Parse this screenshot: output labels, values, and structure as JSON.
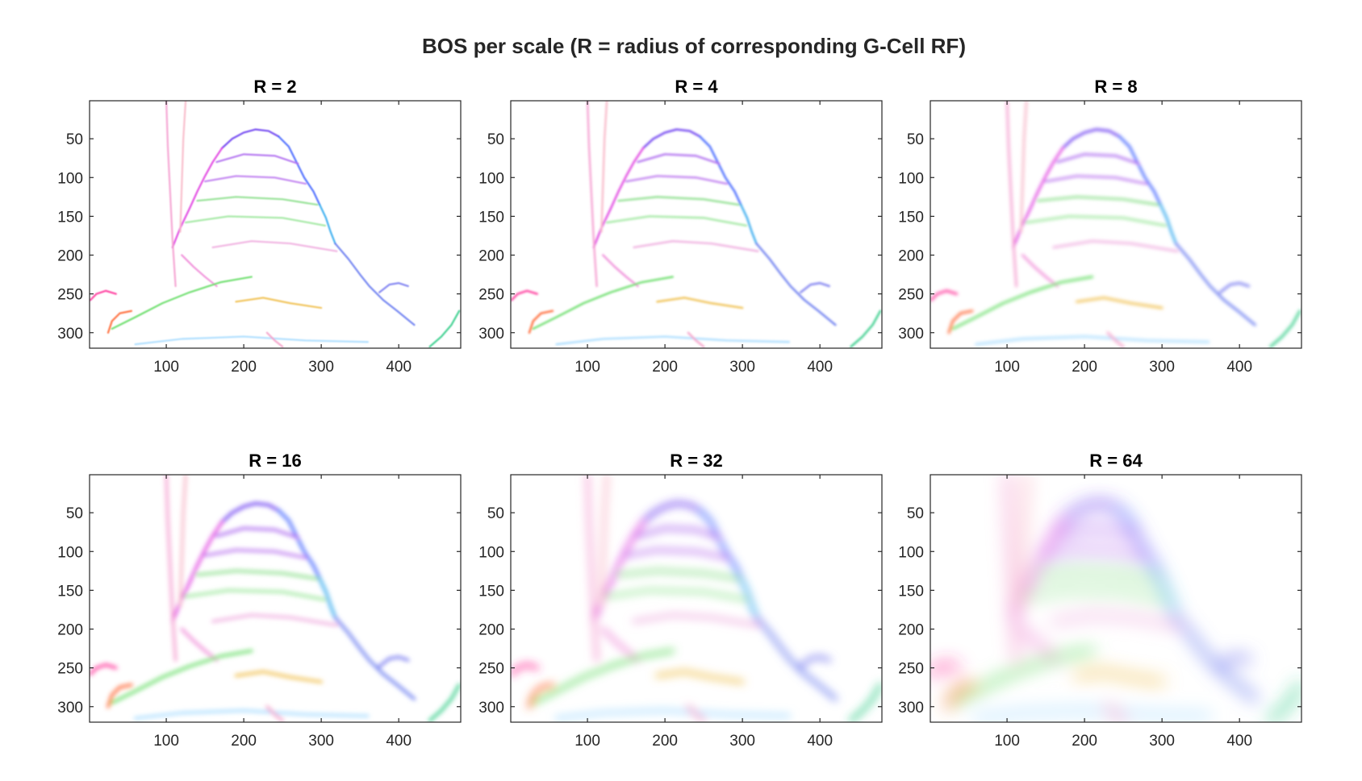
{
  "figure_title": "BOS per scale (R = radius of corresponding G-Cell RF)",
  "chart_data": [
    {
      "type": "heatmap",
      "title": "R = 2",
      "radius": 2,
      "xlim": [
        1,
        480
      ],
      "ylim": [
        1,
        320
      ],
      "y_direction": "reverse",
      "xticks": [
        100,
        200,
        300,
        400
      ],
      "yticks": [
        50,
        100,
        150,
        200,
        250,
        300
      ],
      "xtick_labels": [
        "100",
        "200",
        "300",
        "400"
      ],
      "ytick_labels": [
        "50",
        "100",
        "150",
        "200",
        "250",
        "300"
      ],
      "blur": 0.7,
      "peak_opacity": 0.85
    },
    {
      "type": "heatmap",
      "title": "R = 4",
      "radius": 4,
      "xlim": [
        1,
        480
      ],
      "ylim": [
        1,
        320
      ],
      "y_direction": "reverse",
      "xticks": [
        100,
        200,
        300,
        400
      ],
      "yticks": [
        50,
        100,
        150,
        200,
        250,
        300
      ],
      "xtick_labels": [
        "100",
        "200",
        "300",
        "400"
      ],
      "ytick_labels": [
        "50",
        "100",
        "150",
        "200",
        "250",
        "300"
      ],
      "blur": 1.2,
      "peak_opacity": 0.9
    },
    {
      "type": "heatmap",
      "title": "R = 8",
      "radius": 8,
      "xlim": [
        1,
        480
      ],
      "ylim": [
        1,
        320
      ],
      "y_direction": "reverse",
      "xticks": [
        100,
        200,
        300,
        400
      ],
      "yticks": [
        50,
        100,
        150,
        200,
        250,
        300
      ],
      "xtick_labels": [
        "100",
        "200",
        "300",
        "400"
      ],
      "ytick_labels": [
        "50",
        "100",
        "150",
        "200",
        "250",
        "300"
      ],
      "blur": 2,
      "peak_opacity": 0.95
    },
    {
      "type": "heatmap",
      "title": "R = 16",
      "radius": 16,
      "xlim": [
        1,
        480
      ],
      "ylim": [
        1,
        320
      ],
      "y_direction": "reverse",
      "xticks": [
        100,
        200,
        300,
        400
      ],
      "yticks": [
        50,
        100,
        150,
        200,
        250,
        300
      ],
      "xtick_labels": [
        "100",
        "200",
        "300",
        "400"
      ],
      "ytick_labels": [
        "50",
        "100",
        "150",
        "200",
        "250",
        "300"
      ],
      "blur": 3,
      "peak_opacity": 0.95
    },
    {
      "type": "heatmap",
      "title": "R = 32",
      "radius": 32,
      "xlim": [
        1,
        480
      ],
      "ylim": [
        1,
        320
      ],
      "y_direction": "reverse",
      "xticks": [
        100,
        200,
        300,
        400
      ],
      "yticks": [
        50,
        100,
        150,
        200,
        250,
        300
      ],
      "xtick_labels": [
        "100",
        "200",
        "300",
        "400"
      ],
      "ytick_labels": [
        "50",
        "100",
        "150",
        "200",
        "250",
        "300"
      ],
      "blur": 5.5,
      "peak_opacity": 0.9
    },
    {
      "type": "heatmap",
      "title": "R = 64",
      "radius": 64,
      "xlim": [
        1,
        480
      ],
      "ylim": [
        1,
        320
      ],
      "y_direction": "reverse",
      "xticks": [
        100,
        200,
        300,
        400
      ],
      "yticks": [
        50,
        100,
        150,
        200,
        250,
        300
      ],
      "xtick_labels": [
        "100",
        "200",
        "300",
        "400"
      ],
      "ytick_labels": [
        "50",
        "100",
        "150",
        "200",
        "250",
        "300"
      ],
      "blur": 11,
      "peak_opacity": 0.85
    }
  ],
  "edge_traces": [
    {
      "name": "peak-cap",
      "color": "#6a3cf0",
      "points": [
        [
          172,
          62
        ],
        [
          185,
          50
        ],
        [
          200,
          42
        ],
        [
          215,
          38
        ],
        [
          232,
          40
        ],
        [
          245,
          47
        ]
      ]
    },
    {
      "name": "right-slope-upper",
      "color": "#4466ff",
      "points": [
        [
          245,
          47
        ],
        [
          258,
          60
        ],
        [
          268,
          80
        ],
        [
          278,
          100
        ],
        [
          290,
          118
        ],
        [
          298,
          135
        ]
      ]
    },
    {
      "name": "right-slope-mid",
      "color": "#33aaee",
      "points": [
        [
          298,
          135
        ],
        [
          306,
          152
        ],
        [
          312,
          170
        ],
        [
          318,
          185
        ]
      ]
    },
    {
      "name": "right-slope-lower",
      "color": "#6a7cf0",
      "points": [
        [
          318,
          185
        ],
        [
          335,
          205
        ],
        [
          350,
          225
        ],
        [
          362,
          240
        ],
        [
          380,
          258
        ],
        [
          398,
          272
        ],
        [
          420,
          290
        ]
      ]
    },
    {
      "name": "left-steps",
      "color": "#e040e0",
      "points": [
        [
          172,
          62
        ],
        [
          160,
          80
        ],
        [
          150,
          98
        ],
        [
          140,
          118
        ],
        [
          130,
          140
        ],
        [
          118,
          165
        ],
        [
          108,
          190
        ]
      ]
    },
    {
      "name": "inner-band-1",
      "color": "#b070f0",
      "points": [
        [
          165,
          80
        ],
        [
          200,
          70
        ],
        [
          240,
          72
        ],
        [
          270,
          82
        ]
      ]
    },
    {
      "name": "inner-band-2",
      "color": "#c080f0",
      "points": [
        [
          150,
          105
        ],
        [
          190,
          98
        ],
        [
          240,
          100
        ],
        [
          280,
          108
        ]
      ]
    },
    {
      "name": "inner-band-3",
      "color": "#90e090",
      "points": [
        [
          140,
          130
        ],
        [
          190,
          125
        ],
        [
          250,
          128
        ],
        [
          295,
          135
        ]
      ]
    },
    {
      "name": "inner-band-4",
      "color": "#a0e8a0",
      "points": [
        [
          125,
          158
        ],
        [
          180,
          150
        ],
        [
          250,
          152
        ],
        [
          305,
          162
        ]
      ]
    },
    {
      "name": "inner-band-5",
      "color": "#f0b0e0",
      "points": [
        [
          160,
          190
        ],
        [
          210,
          182
        ],
        [
          260,
          185
        ],
        [
          320,
          195
        ]
      ]
    },
    {
      "name": "shoulder-left",
      "color": "#f08cd8",
      "points": [
        [
          120,
          200
        ],
        [
          135,
          215
        ],
        [
          150,
          228
        ],
        [
          165,
          240
        ]
      ]
    },
    {
      "name": "base-left-green",
      "color": "#66dd66",
      "points": [
        [
          30,
          295
        ],
        [
          60,
          280
        ],
        [
          95,
          262
        ],
        [
          130,
          248
        ],
        [
          170,
          235
        ],
        [
          210,
          228
        ]
      ]
    },
    {
      "name": "base-mid-yellow",
      "color": "#f0c050",
      "points": [
        [
          190,
          260
        ],
        [
          225,
          255
        ],
        [
          260,
          262
        ],
        [
          300,
          268
        ]
      ]
    },
    {
      "name": "left-bump",
      "color": "#ff3399",
      "points": [
        [
          2,
          258
        ],
        [
          10,
          250
        ],
        [
          22,
          246
        ],
        [
          35,
          250
        ]
      ]
    },
    {
      "name": "left-corner",
      "color": "#ff6633",
      "points": [
        [
          25,
          300
        ],
        [
          30,
          285
        ],
        [
          40,
          275
        ],
        [
          55,
          272
        ]
      ]
    },
    {
      "name": "right-bump",
      "color": "#7a7cf0",
      "points": [
        [
          375,
          248
        ],
        [
          388,
          238
        ],
        [
          400,
          236
        ],
        [
          412,
          240
        ]
      ]
    },
    {
      "name": "bottom-right",
      "color": "#33cc88",
      "points": [
        [
          440,
          318
        ],
        [
          455,
          305
        ],
        [
          468,
          290
        ],
        [
          478,
          272
        ]
      ]
    },
    {
      "name": "left-pillar",
      "color": "#f5a0d0",
      "points": [
        [
          100,
          1
        ],
        [
          102,
          60
        ],
        [
          105,
          120
        ],
        [
          108,
          180
        ],
        [
          112,
          240
        ]
      ]
    },
    {
      "name": "left-pillar-2",
      "color": "#f8b8c8",
      "points": [
        [
          125,
          1
        ],
        [
          122,
          50
        ],
        [
          120,
          110
        ],
        [
          118,
          170
        ]
      ]
    },
    {
      "name": "faint-bottom",
      "color": "#aaddff",
      "points": [
        [
          60,
          315
        ],
        [
          120,
          308
        ],
        [
          200,
          305
        ],
        [
          280,
          310
        ],
        [
          360,
          312
        ]
      ]
    },
    {
      "name": "faint-bottom-pink",
      "color": "#f5a0c8",
      "points": [
        [
          230,
          300
        ],
        [
          240,
          310
        ],
        [
          250,
          318
        ]
      ]
    }
  ]
}
